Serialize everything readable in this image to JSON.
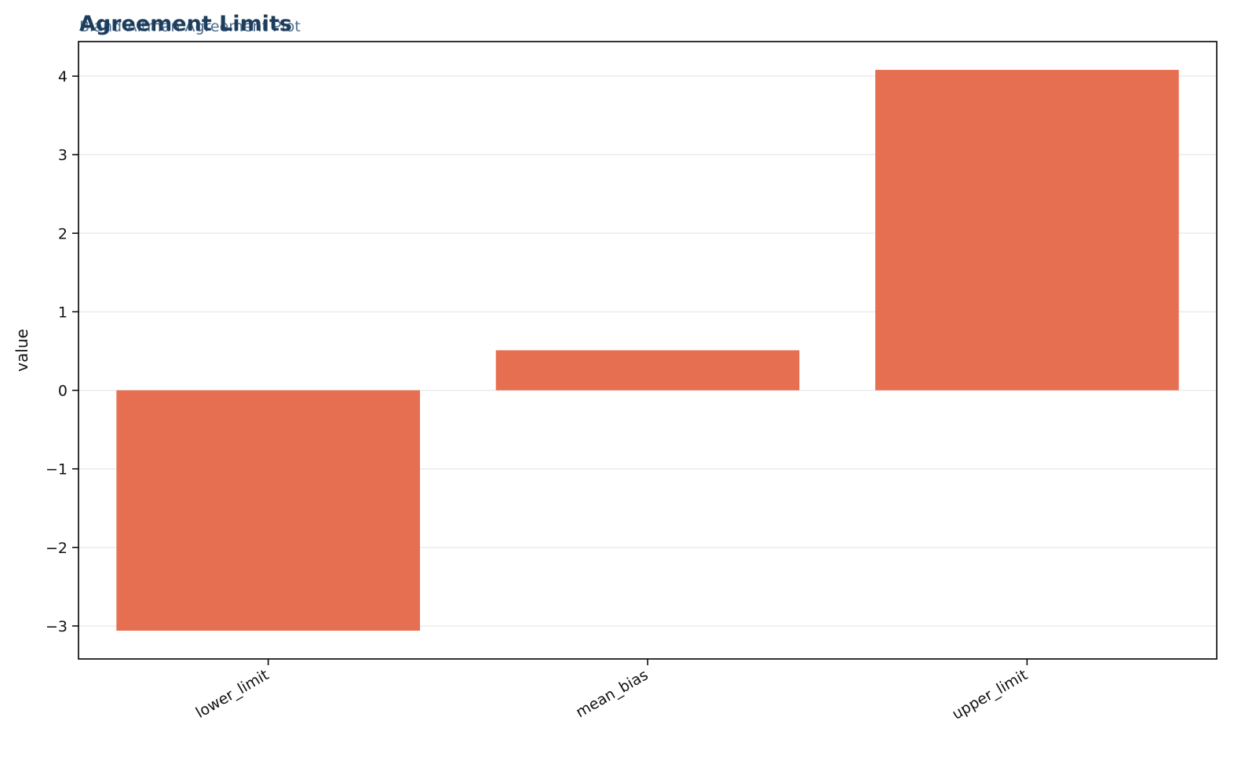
{
  "chart_data": {
    "type": "bar",
    "title": "Agreement Limits",
    "subtitle": "Bland-Altman Agreement Plot",
    "xlabel": "",
    "ylabel": "value",
    "categories": [
      "lower_limit",
      "mean_bias",
      "upper_limit"
    ],
    "values": [
      -3.06,
      0.51,
      4.08
    ],
    "ylim": [
      -3.42,
      4.44
    ],
    "yticks": [
      -3,
      -2,
      -1,
      0,
      1,
      2,
      3,
      4
    ],
    "ytick_labels": [
      "−3",
      "−2",
      "−1",
      "0",
      "1",
      "2",
      "3",
      "4"
    ],
    "grid": true,
    "legend": "none",
    "colors": {
      "bar": "#e76f51",
      "title": "#1d3d5c",
      "subtitle": "#4f6f8f",
      "grid": "#ebebeb",
      "axis": "#000000"
    }
  }
}
